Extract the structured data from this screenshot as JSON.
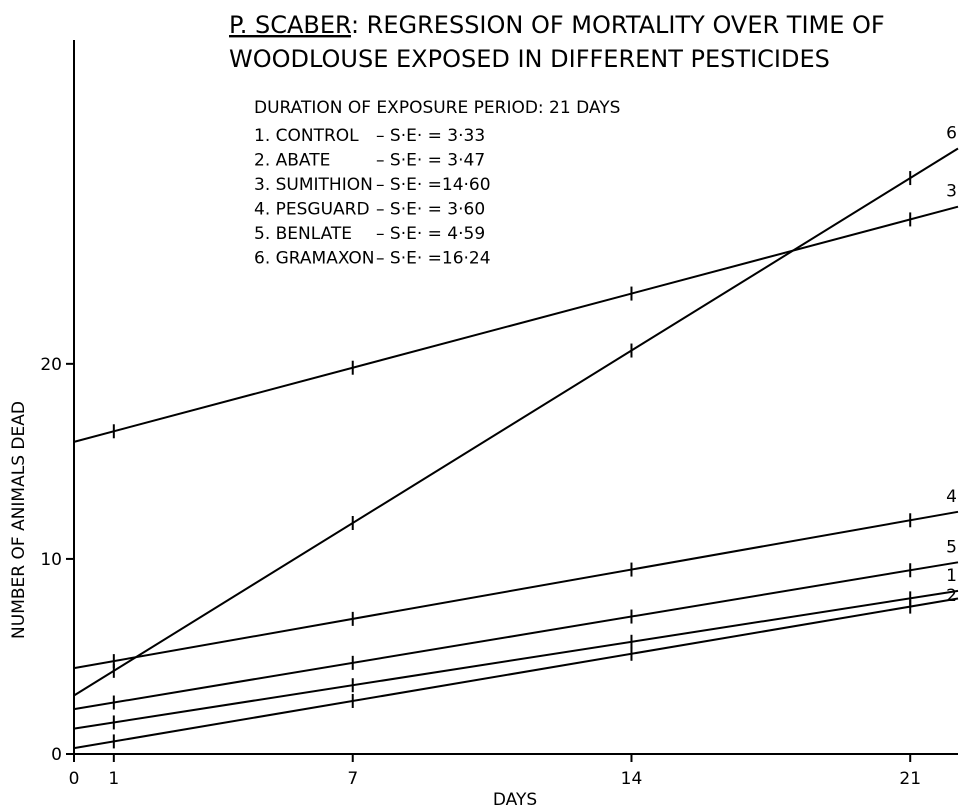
{
  "chart_data": {
    "type": "line",
    "title_part1": "P. SCABER",
    "title_part2": ": REGRESSION OF MORTALITY OVER TIME OF",
    "title_line2": "WOODLOUSE EXPOSED IN DIFFERENT PESTICIDES",
    "subtitle": "DURATION OF EXPOSURE PERIOD: 21 DAYS",
    "xlabel": "DAYS",
    "ylabel": "NUMBER OF ANIMALS DEAD",
    "xlim": [
      0,
      22.2
    ],
    "ylim": [
      0,
      36.6
    ],
    "x_ticks": [
      0,
      1,
      7,
      14,
      21
    ],
    "y_ticks": [
      0,
      10,
      20
    ],
    "grid": false,
    "legend": [
      {
        "num": "1.",
        "name": "CONTROL",
        "se": "– S·E·  = 3·33"
      },
      {
        "num": "2.",
        "name": "ABATE",
        "se": "– S·E·  = 3·47"
      },
      {
        "num": "3.",
        "name": "SUMITHION",
        "se": "– S·E·  =14·60"
      },
      {
        "num": "4.",
        "name": "PESGUARD",
        "se": "– S·E·  = 3·60"
      },
      {
        "num": "5.",
        "name": "BENLATE",
        "se": "– S·E·  = 4·59"
      },
      {
        "num": "6.",
        "name": "GRAMAXON",
        "se": "– S·E·  =16·24"
      }
    ],
    "series": [
      {
        "name": "1",
        "intercept": 1.3,
        "slope": 0.318,
        "marks": [
          1,
          7,
          14,
          21
        ],
        "x_end": 22.2
      },
      {
        "name": "2",
        "intercept": 0.3,
        "slope": 0.3455,
        "marks": [
          1,
          7,
          14,
          21
        ],
        "x_end": 22.2
      },
      {
        "name": "3",
        "intercept": 16.0,
        "slope": 0.543,
        "marks": [
          1,
          7,
          14,
          21
        ],
        "x_end": 22.2
      },
      {
        "name": "4",
        "intercept": 4.4,
        "slope": 0.361,
        "marks": [
          1,
          7,
          14,
          21
        ],
        "x_end": 22.2
      },
      {
        "name": "5",
        "intercept": 2.3,
        "slope": 0.339,
        "marks": [
          1,
          7,
          14,
          21
        ],
        "x_end": 22.2
      },
      {
        "name": "6",
        "intercept": 3.0,
        "slope": 1.263,
        "marks": [
          1,
          7,
          14,
          21
        ],
        "x_end": 22.2
      }
    ]
  }
}
